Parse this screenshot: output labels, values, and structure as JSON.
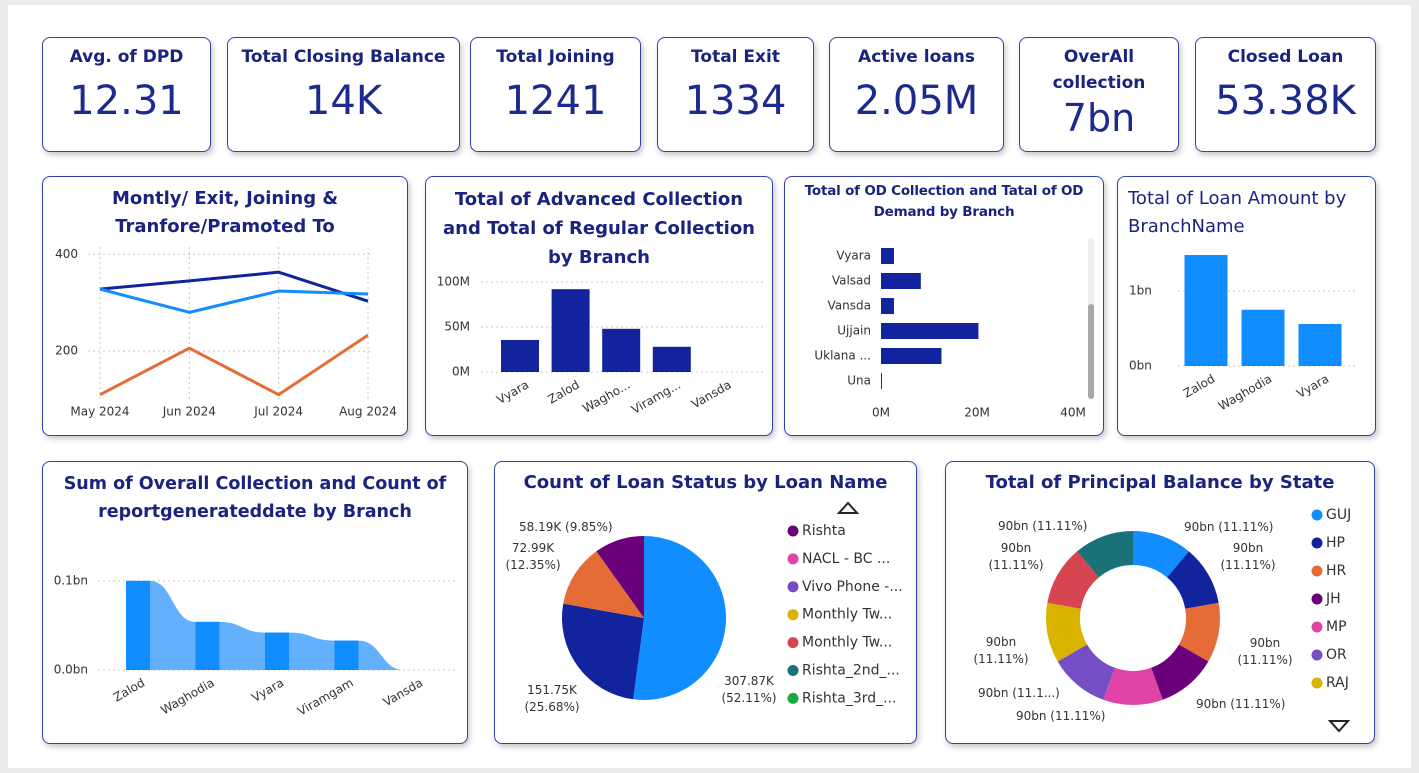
{
  "kpis": [
    {
      "label": "Avg. of DPD",
      "value": "12.31"
    },
    {
      "label": "Total Closing Balance",
      "value": "14K"
    },
    {
      "label": "Total Joining",
      "value": "1241"
    },
    {
      "label": "Total Exit",
      "value": "1334"
    },
    {
      "label": "Active loans",
      "value": "2.05M"
    },
    {
      "label": "OverAll collection",
      "value": "7bn"
    },
    {
      "label": "Closed Loan",
      "value": "53.38K"
    }
  ],
  "chart_data": [
    {
      "type": "line",
      "title": "Montly/ Exit, Joining & Tranfore/Pramoted To",
      "categories": [
        "May 2024",
        "Jun 2024",
        "Jul 2024",
        "Aug 2024"
      ],
      "series": [
        {
          "color": "#12239e",
          "values": [
            328,
            345,
            363,
            303
          ]
        },
        {
          "color": "#118dff",
          "values": [
            328,
            280,
            324,
            318
          ]
        },
        {
          "color": "#e66c37",
          "values": [
            110,
            206,
            110,
            233
          ]
        }
      ],
      "ylim": [
        100,
        415
      ],
      "yticks": [
        200,
        400
      ],
      "grid": true
    },
    {
      "type": "bar",
      "title": "Total of Advanced Collection and Total of Regular Collection by Branch",
      "categories": [
        "Vyara",
        "Zalod",
        "Wagho...",
        "Viramg...",
        "Vansda"
      ],
      "values": [
        35600000,
        92000000,
        48000000,
        28000000,
        0
      ],
      "color": "#12239e",
      "ylim": [
        0,
        110000000
      ],
      "yticks": [
        {
          "value": 0,
          "label": "0M"
        },
        {
          "value": 50000000,
          "label": "50M"
        },
        {
          "value": 100000000,
          "label": "100M"
        }
      ],
      "grid": true
    },
    {
      "type": "hbar",
      "title": "Total of OD Collection and Tatal of OD Demand by Branch",
      "categories": [
        "Vyara",
        "Valsad",
        "Vansda",
        "Ujjain",
        "Uklana ...",
        "Una"
      ],
      "values": [
        2700000,
        8300000,
        2700000,
        20300000,
        12600000,
        200000
      ],
      "color": "#12239e",
      "xlim": [
        0,
        40000000
      ],
      "xticks": [
        {
          "value": 0,
          "label": "0M"
        },
        {
          "value": 20000000,
          "label": "20M"
        },
        {
          "value": 40000000,
          "label": "40M"
        }
      ],
      "grid": false
    },
    {
      "type": "bar",
      "title": "Total of Loan Amount by BranchName",
      "categories": [
        "Zalod",
        "Waghodia",
        "Vyara"
      ],
      "values": [
        1480000000,
        750000000,
        560000000
      ],
      "color": "#118dff",
      "ylim": [
        0,
        1600000000
      ],
      "yticks": [
        {
          "value": 0,
          "label": "0bn"
        },
        {
          "value": 1000000000,
          "label": "1bn"
        }
      ],
      "grid": true
    },
    {
      "type": "area",
      "title": "Sum of Overall Collection and Count of reportgenerateddate by Branch",
      "categories": [
        "Zalod",
        "Waghodia",
        "Vyara",
        "Viramgam",
        "Vansda"
      ],
      "values": [
        100000000,
        54000000,
        42000000,
        33000000,
        0
      ],
      "color": "#118dff",
      "area_color": "#63b0ff",
      "ylim": [
        0,
        120000000
      ],
      "yticks": [
        {
          "value": 0,
          "label": "0.0bn"
        },
        {
          "value": 100000000,
          "label": "0.1bn"
        }
      ],
      "grid": true
    },
    {
      "type": "pie",
      "title": "Count of Loan Status by Loan Name",
      "values": [
        307870,
        151750,
        72990,
        58190
      ],
      "value_labels": [
        "307.87K (52.11%)",
        "151.75K (25.68%)",
        "72.99K (12.35%)",
        "58.19K (9.85%)"
      ],
      "colors": [
        "#118dff",
        "#12239e",
        "#e66c37",
        "#6b007b"
      ],
      "legend": [
        {
          "name": "Rishta",
          "color": "#6b007b"
        },
        {
          "name": "NACL - BC ...",
          "color": "#e044a7"
        },
        {
          "name": "Vivo Phone -...",
          "color": "#744ec2"
        },
        {
          "name": "Monthly Tw...",
          "color": "#d9b300"
        },
        {
          "name": "Monthly Tw...",
          "color": "#d64550"
        },
        {
          "name": "Rishta_2nd_...",
          "color": "#197278"
        },
        {
          "name": "Rishta_3rd_...",
          "color": "#1aab40"
        }
      ]
    },
    {
      "type": "donut",
      "title": "Total of Principal Balance by State",
      "values": [
        90000000000,
        90000000000,
        90000000000,
        90000000000,
        90000000000,
        90000000000,
        90000000000,
        90000000000,
        90000000000
      ],
      "value_labels": [
        "90bn (11.11%)",
        "90bn (11.11%)",
        "90bn (11.11%)",
        "90bn (11.11%)",
        "90bn (11.11%)",
        "90bn (11.1...)",
        "90bn (11.11%)",
        "90bn (11.11%)",
        "90bn (11.11%)"
      ],
      "colors": [
        "#118dff",
        "#12239e",
        "#e66c37",
        "#6b007b",
        "#e044a7",
        "#744ec2",
        "#d9b300",
        "#d64550",
        "#197278"
      ],
      "legend": [
        {
          "name": "GUJ",
          "color": "#118dff"
        },
        {
          "name": "HP",
          "color": "#12239e"
        },
        {
          "name": "HR",
          "color": "#e66c37"
        },
        {
          "name": "JH",
          "color": "#6b007b"
        },
        {
          "name": "MP",
          "color": "#e044a7"
        },
        {
          "name": "OR",
          "color": "#744ec2"
        },
        {
          "name": "RAJ",
          "color": "#d9b300"
        }
      ]
    }
  ]
}
